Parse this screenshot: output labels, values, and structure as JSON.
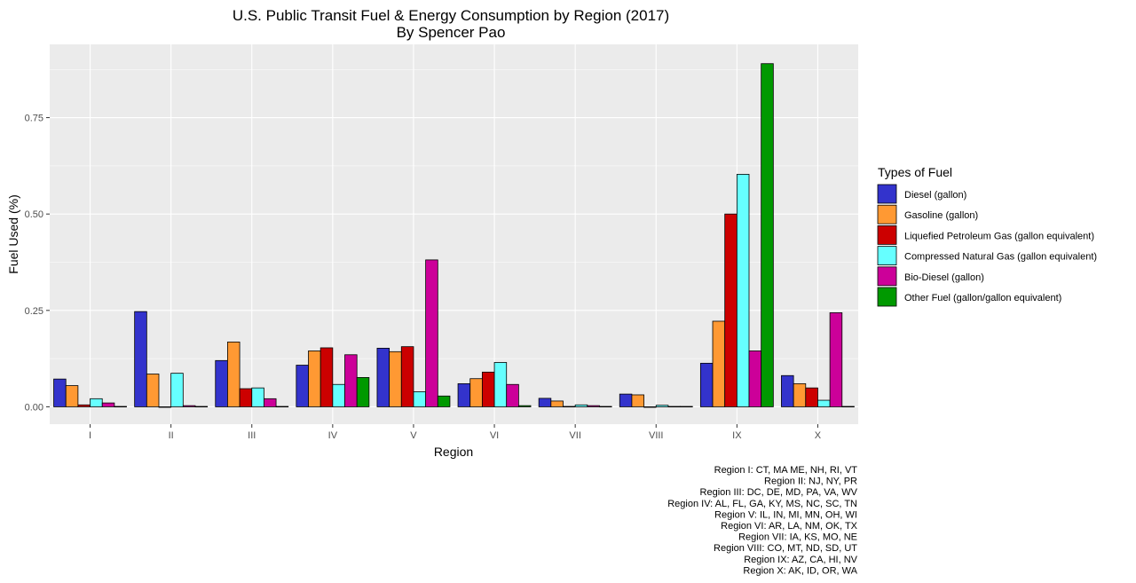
{
  "chart_data": {
    "type": "bar",
    "title": "U.S. Public Transit Fuel & Energy Consumption by Region (2017)",
    "subtitle": "By Spencer Pao",
    "xlabel": "Region",
    "ylabel": "Fuel Used (%)",
    "ylim": [
      -0.045,
      0.94
    ],
    "yticks": [
      0.0,
      0.25,
      0.5,
      0.75
    ],
    "ytick_labels": [
      "0.00",
      "0.25",
      "0.50",
      "0.75"
    ],
    "grid": true,
    "legend_position": "right",
    "legend_title": "Types of Fuel",
    "categories": [
      "I",
      "II",
      "III",
      "IV",
      "V",
      "VI",
      "VII",
      "VIII",
      "IX",
      "X"
    ],
    "series": [
      {
        "name": "Diesel (gallon)",
        "color": "#3333CC",
        "values": [
          0.072,
          0.247,
          0.12,
          0.108,
          0.152,
          0.06,
          0.022,
          0.033,
          0.113,
          0.081
        ]
      },
      {
        "name": "Gasoline (gallon)",
        "color": "#FF9933",
        "values": [
          0.055,
          0.085,
          0.168,
          0.145,
          0.143,
          0.073,
          0.015,
          0.031,
          0.222,
          0.06
        ]
      },
      {
        "name": "Liquefied Petroleum Gas (gallon equivalent)",
        "color": "#CC0000",
        "values": [
          0.005,
          0.0,
          0.047,
          0.153,
          0.156,
          0.09,
          0.001,
          0.0,
          0.5,
          0.049
        ]
      },
      {
        "name": "Compressed Natural Gas (gallon equivalent)",
        "color": "#66FFFF",
        "values": [
          0.021,
          0.087,
          0.049,
          0.058,
          0.039,
          0.115,
          0.005,
          0.004,
          0.603,
          0.017
        ]
      },
      {
        "name": "Bio-Diesel (gallon)",
        "color": "#CC0099",
        "values": [
          0.01,
          0.003,
          0.021,
          0.135,
          0.381,
          0.058,
          0.003,
          0.001,
          0.145,
          0.244
        ]
      },
      {
        "name": "Other Fuel (gallon/gallon equivalent)",
        "color": "#009900",
        "values": [
          0.001,
          0.001,
          0.001,
          0.076,
          0.028,
          0.003,
          0.001,
          0.001,
          0.89,
          0.001
        ]
      }
    ],
    "caption_lines": [
      "Region I: CT, MA ME, NH, RI, VT",
      "Region II: NJ, NY, PR",
      "Region III: DC, DE, MD, PA, VA, WV",
      "Region IV: AL, FL, GA, KY, MS, NC, SC, TN",
      "Region V: IL, IN, MI, MN, OH, WI",
      "Region VI: AR, LA, NM, OK, TX",
      "Region VII: IA, KS, MO, NE",
      "Region VIII: CO, MT, ND, SD, UT",
      "Region IX: AZ, CA, HI, NV",
      "Region X: AK, ID, OR, WA"
    ]
  }
}
